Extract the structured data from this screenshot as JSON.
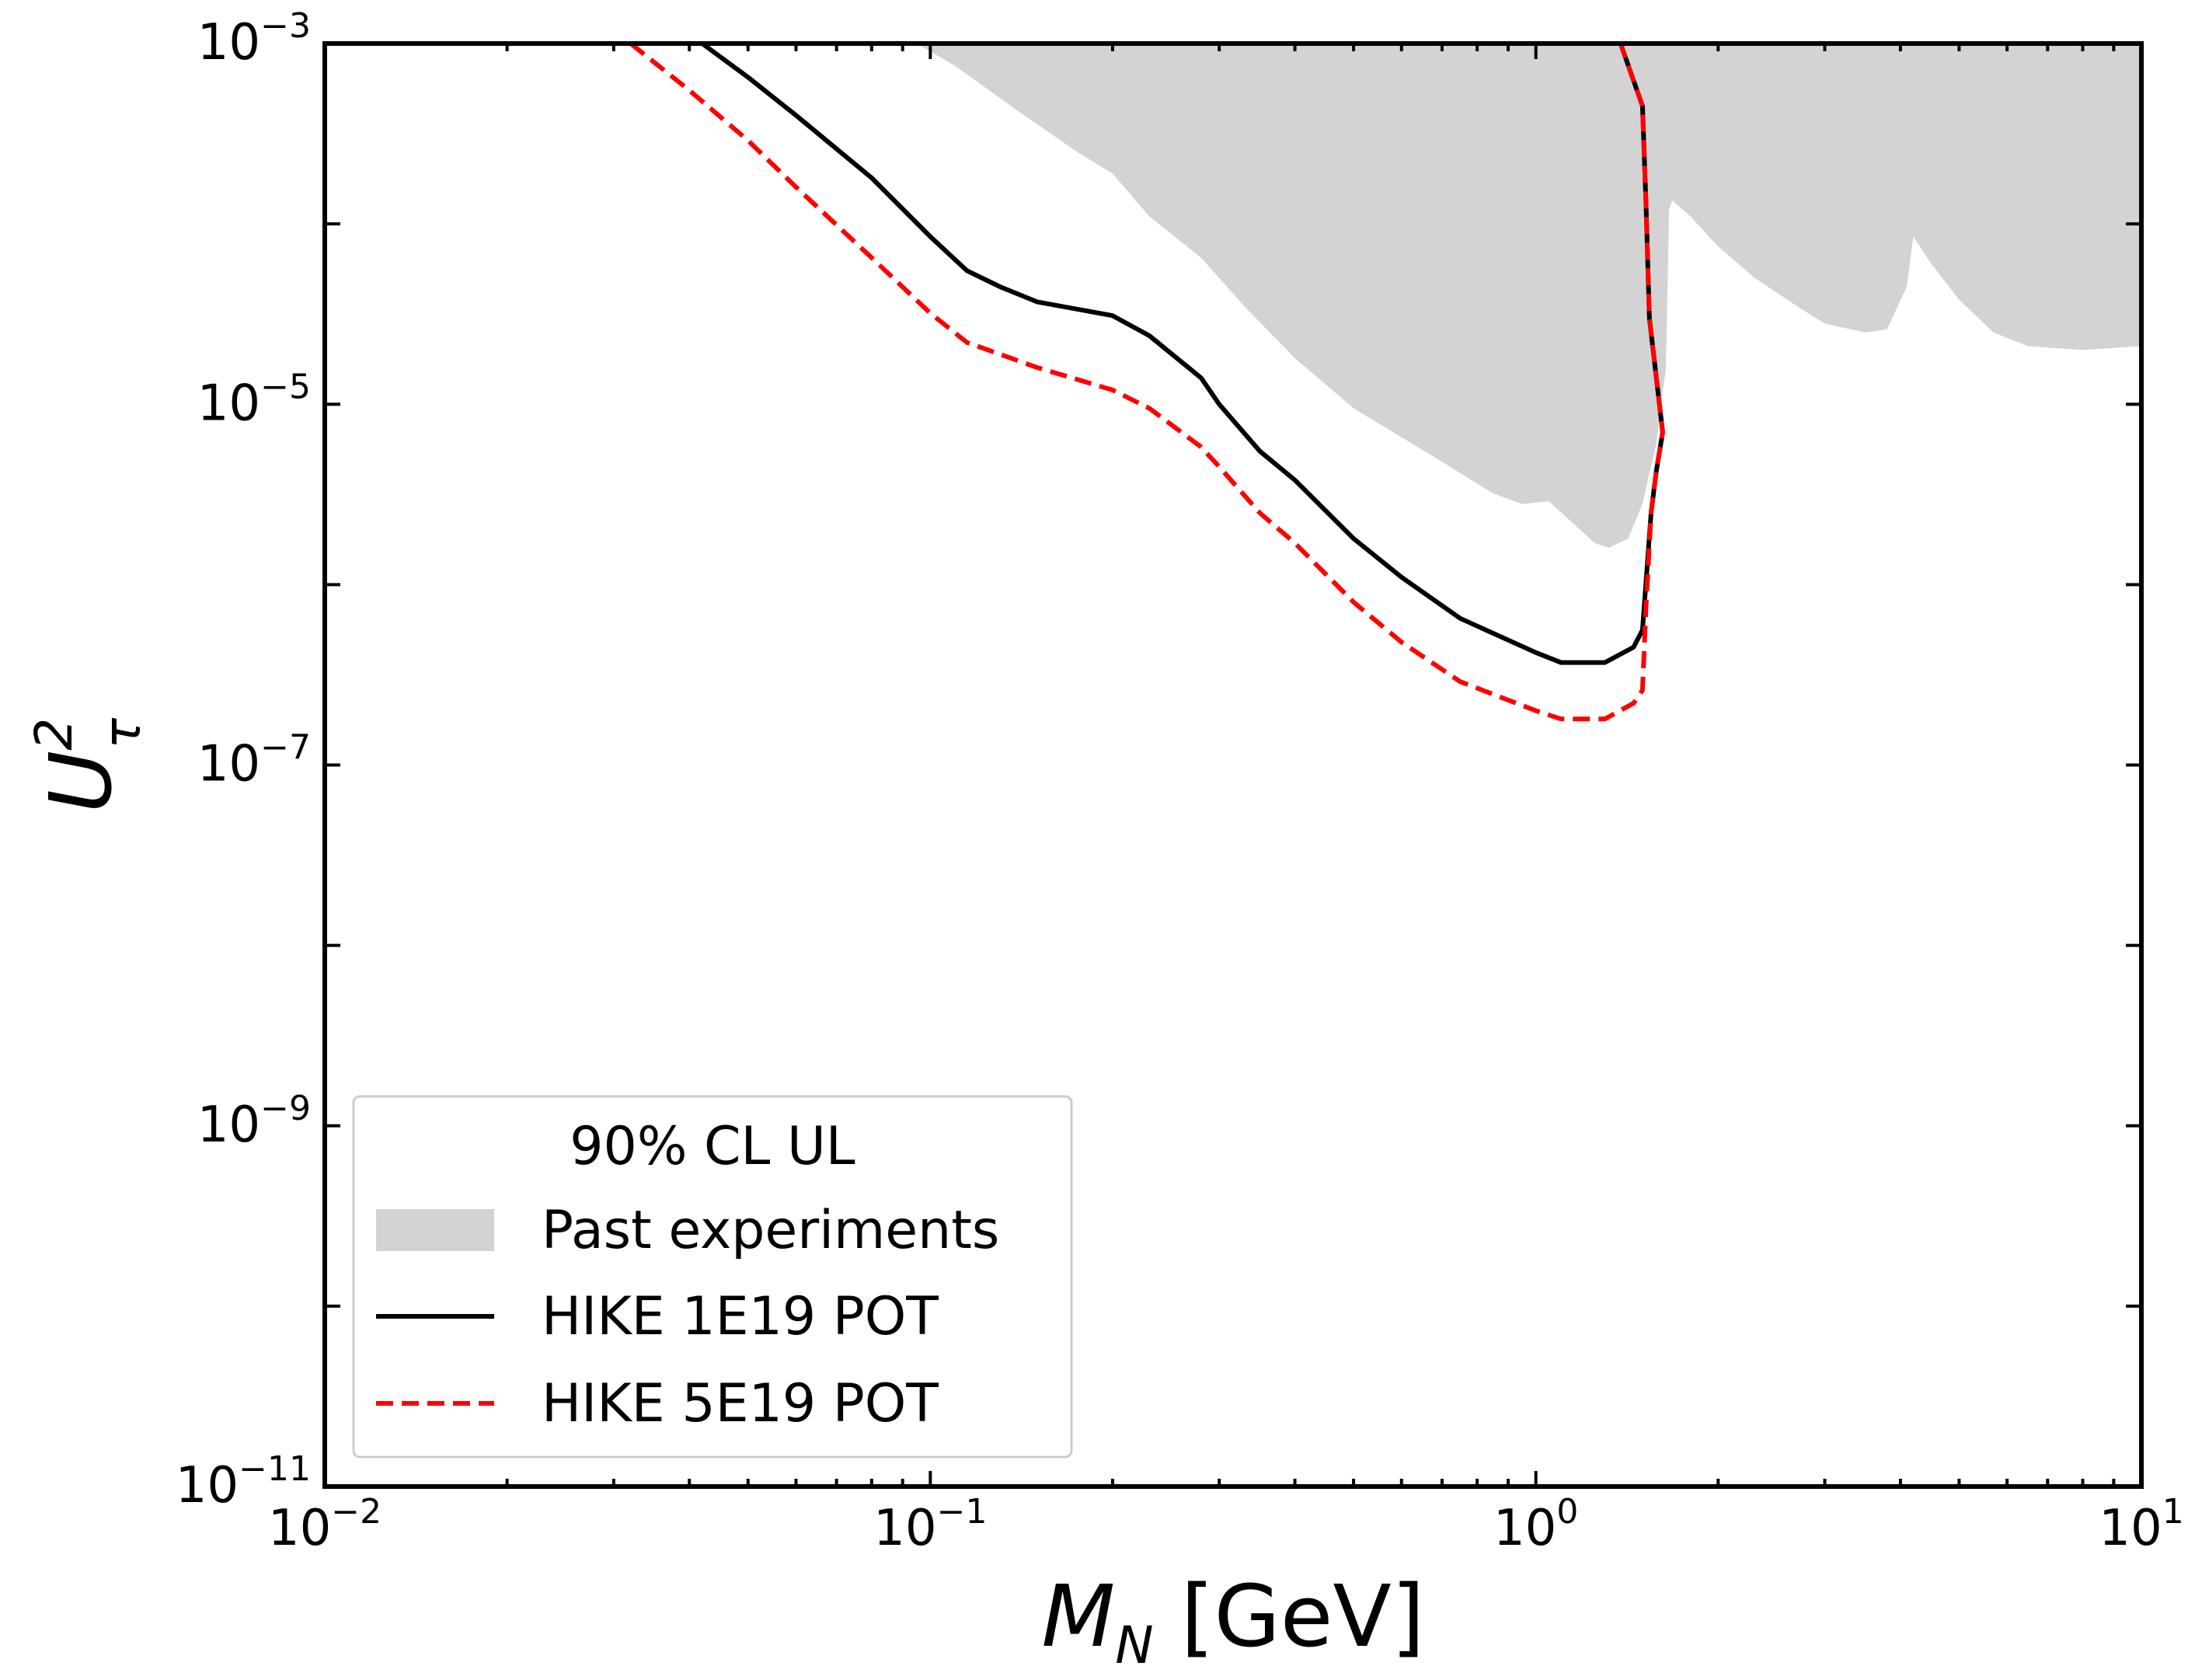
{
  "chart_data": {
    "type": "line",
    "x_scale": "log",
    "y_scale": "log",
    "xlim": [
      0.01,
      10
    ],
    "ylim": [
      1e-11,
      0.001
    ],
    "xlabel": {
      "main": "M",
      "sub": "N",
      "unit": " [GeV]"
    },
    "ylabel": {
      "main": "U",
      "sup": "2",
      "sub": "τ"
    },
    "x_ticks": [
      {
        "value": 0.01,
        "base": "10",
        "exp": "−2"
      },
      {
        "value": 0.1,
        "base": "10",
        "exp": "−1"
      },
      {
        "value": 1,
        "base": "10",
        "exp": "0"
      },
      {
        "value": 10,
        "base": "10",
        "exp": "1"
      }
    ],
    "y_ticks": [
      {
        "value": 1e-11,
        "base": "10",
        "exp": "−11"
      },
      {
        "value": 1e-09,
        "base": "10",
        "exp": "−9"
      },
      {
        "value": 1e-07,
        "base": "10",
        "exp": "−7"
      },
      {
        "value": 1e-05,
        "base": "10",
        "exp": "−5"
      },
      {
        "value": 0.001,
        "base": "10",
        "exp": "−3"
      }
    ],
    "legend": {
      "title": "90% CL UL",
      "position": "lower-left",
      "entries": [
        {
          "label": "Past experiments",
          "style": "fill",
          "color": "#d3d3d3"
        },
        {
          "label": "HIKE 1E19 POT",
          "style": "solid",
          "color": "#000000"
        },
        {
          "label": "HIKE 5E19 POT",
          "style": "dashed",
          "color": "#ff0000"
        }
      ]
    },
    "series": [
      {
        "name": "Past experiments",
        "style": "fill",
        "color": "#d3d3d3",
        "points": [
          [
            0.095,
            0.001
          ],
          [
            0.11,
            0.00075
          ],
          [
            0.14,
            0.00042
          ],
          [
            0.175,
            0.00025
          ],
          [
            0.2,
            0.00019
          ],
          [
            0.23,
            0.00011
          ],
          [
            0.28,
            6.5e-05
          ],
          [
            0.33,
            3.5e-05
          ],
          [
            0.4,
            1.8e-05
          ],
          [
            0.5,
            9.5e-06
          ],
          [
            0.7,
            4.8e-06
          ],
          [
            0.85,
            3.2e-06
          ],
          [
            0.95,
            2.8e-06
          ],
          [
            1.05,
            2.9e-06
          ],
          [
            1.15,
            2.2e-06
          ],
          [
            1.25,
            1.7e-06
          ],
          [
            1.32,
            1.6e-06
          ],
          [
            1.42,
            1.8e-06
          ],
          [
            1.5,
            2.8e-06
          ],
          [
            1.58,
            6e-06
          ],
          [
            1.64,
            1.6e-05
          ],
          [
            1.66,
            0.00012
          ],
          [
            1.68,
            0.000135
          ],
          [
            1.8,
            0.00011
          ],
          [
            2.0,
            7.5e-05
          ],
          [
            2.3,
            5e-05
          ],
          [
            2.7,
            3.5e-05
          ],
          [
            3.0,
            2.8e-05
          ],
          [
            3.5,
            2.5e-05
          ],
          [
            3.8,
            2.6e-05
          ],
          [
            4.1,
            4.5e-05
          ],
          [
            4.2,
            8.5e-05
          ],
          [
            4.5,
            6e-05
          ],
          [
            5.0,
            3.8e-05
          ],
          [
            5.7,
            2.5e-05
          ],
          [
            6.5,
            2.1e-05
          ],
          [
            8.0,
            2e-05
          ],
          [
            10.0,
            2.1e-05
          ]
        ]
      },
      {
        "name": "HIKE 1E19 POT",
        "style": "solid",
        "color": "#000000",
        "points": [
          [
            0.042,
            0.001
          ],
          [
            0.05,
            0.00065
          ],
          [
            0.06,
            0.0004
          ],
          [
            0.08,
            0.00018
          ],
          [
            0.1,
            8.5e-05
          ],
          [
            0.115,
            5.5e-05
          ],
          [
            0.13,
            4.5e-05
          ],
          [
            0.15,
            3.7e-05
          ],
          [
            0.2,
            3.1e-05
          ],
          [
            0.23,
            2.4e-05
          ],
          [
            0.28,
            1.4e-05
          ],
          [
            0.3,
            1e-05
          ],
          [
            0.35,
            5.5e-06
          ],
          [
            0.4,
            3.8e-06
          ],
          [
            0.5,
            1.8e-06
          ],
          [
            0.6,
            1.1e-06
          ],
          [
            0.75,
            6.5e-07
          ],
          [
            1.0,
            4.2e-07
          ],
          [
            1.1,
            3.7e-07
          ],
          [
            1.3,
            3.7e-07
          ],
          [
            1.45,
            4.5e-07
          ],
          [
            1.5,
            5.6e-07
          ],
          [
            1.55,
            2.5e-06
          ],
          [
            1.58,
            4.2e-06
          ],
          [
            1.62,
            7e-06
          ],
          [
            1.54,
            3e-05
          ],
          [
            1.52,
            0.00013
          ],
          [
            1.5,
            0.00045
          ],
          [
            1.38,
            0.001
          ]
        ]
      },
      {
        "name": "HIKE 5E19 POT",
        "style": "dashed",
        "color": "#ff0000",
        "points": [
          [
            0.032,
            0.001
          ],
          [
            0.04,
            0.00055
          ],
          [
            0.05,
            0.00029
          ],
          [
            0.06,
            0.00016
          ],
          [
            0.08,
            6.5e-05
          ],
          [
            0.1,
            3.2e-05
          ],
          [
            0.115,
            2.2e-05
          ],
          [
            0.15,
            1.6e-05
          ],
          [
            0.2,
            1.2e-05
          ],
          [
            0.23,
            9.5e-06
          ],
          [
            0.28,
            5.8e-06
          ],
          [
            0.3,
            4.5e-06
          ],
          [
            0.35,
            2.5e-06
          ],
          [
            0.4,
            1.7e-06
          ],
          [
            0.5,
            8e-07
          ],
          [
            0.6,
            4.8e-07
          ],
          [
            0.75,
            2.9e-07
          ],
          [
            1.0,
            2e-07
          ],
          [
            1.1,
            1.8e-07
          ],
          [
            1.3,
            1.8e-07
          ],
          [
            1.45,
            2.2e-07
          ],
          [
            1.5,
            2.6e-07
          ],
          [
            1.52,
            7.5e-07
          ],
          [
            1.55,
            2.5e-06
          ],
          [
            1.58,
            4.2e-06
          ],
          [
            1.62,
            7e-06
          ],
          [
            1.54,
            3e-05
          ],
          [
            1.52,
            0.00013
          ],
          [
            1.5,
            0.00045
          ],
          [
            1.38,
            0.001
          ]
        ]
      }
    ]
  }
}
